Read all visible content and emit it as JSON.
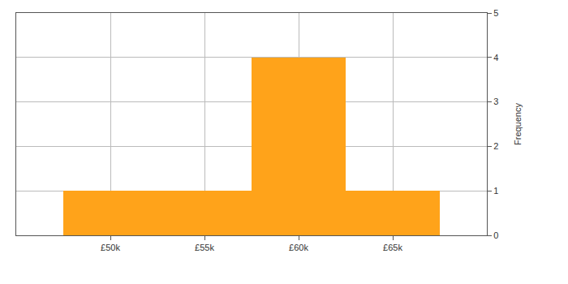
{
  "chart_data": {
    "type": "histogram",
    "bins": [
      47500,
      52500,
      57500,
      62500,
      67500
    ],
    "counts": [
      1,
      1,
      4,
      1
    ],
    "color": "#ffa31a",
    "ylabel": "Frequency",
    "xlim": [
      45000,
      70000
    ],
    "xticks": [
      {
        "value": 50000,
        "label": "£50k"
      },
      {
        "value": 55000,
        "label": "£55k"
      },
      {
        "value": 60000,
        "label": "£60k"
      },
      {
        "value": 65000,
        "label": "£65k"
      }
    ],
    "ylim": [
      0,
      5
    ],
    "yticks": [
      0,
      1,
      2,
      3,
      4,
      5
    ],
    "grid": true
  }
}
